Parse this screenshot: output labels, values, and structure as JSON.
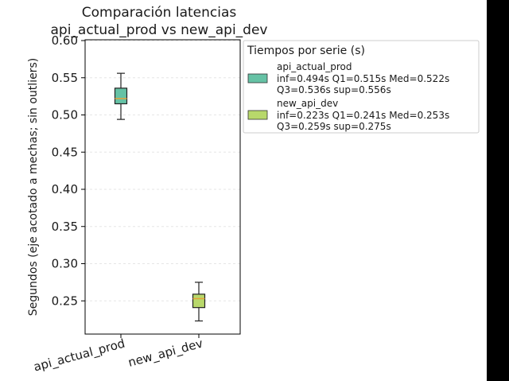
{
  "chart_data": {
    "type": "box",
    "title": "Comparación latencias",
    "subtitle": "api_actual_prod vs new_api_dev",
    "xlabel": "",
    "ylabel": "Segundos (eje acotado a mechas; sin outliers)",
    "ylim": [
      0.2,
      0.6
    ],
    "yticks": [
      "0.25",
      "0.30",
      "0.35",
      "0.40",
      "0.45",
      "0.50",
      "0.55",
      "0.60"
    ],
    "grid": true,
    "categories": [
      "api_actual_prod",
      "new_api_dev"
    ],
    "series": [
      {
        "name": "api_actual_prod",
        "color": "#66c2a5",
        "stats": {
          "inf": 0.494,
          "q1": 0.515,
          "med": 0.522,
          "q3": 0.536,
          "sup": 0.556
        },
        "legend_line1": "inf=0.494s   Q1=0.515s   Med=0.522s",
        "legend_line2": "Q3=0.536s   sup=0.556s"
      },
      {
        "name": "new_api_dev",
        "color": "#b8d86b",
        "stats": {
          "inf": 0.223,
          "q1": 0.241,
          "med": 0.253,
          "q3": 0.259,
          "sup": 0.275
        },
        "legend_line1": "inf=0.223s   Q1=0.241s   Med=0.253s",
        "legend_line2": "Q3=0.259s   sup=0.275s"
      }
    ],
    "median_color": "#e8a23a",
    "legend": {
      "title": "Tiempos por serie (s)",
      "placement": "right"
    }
  }
}
